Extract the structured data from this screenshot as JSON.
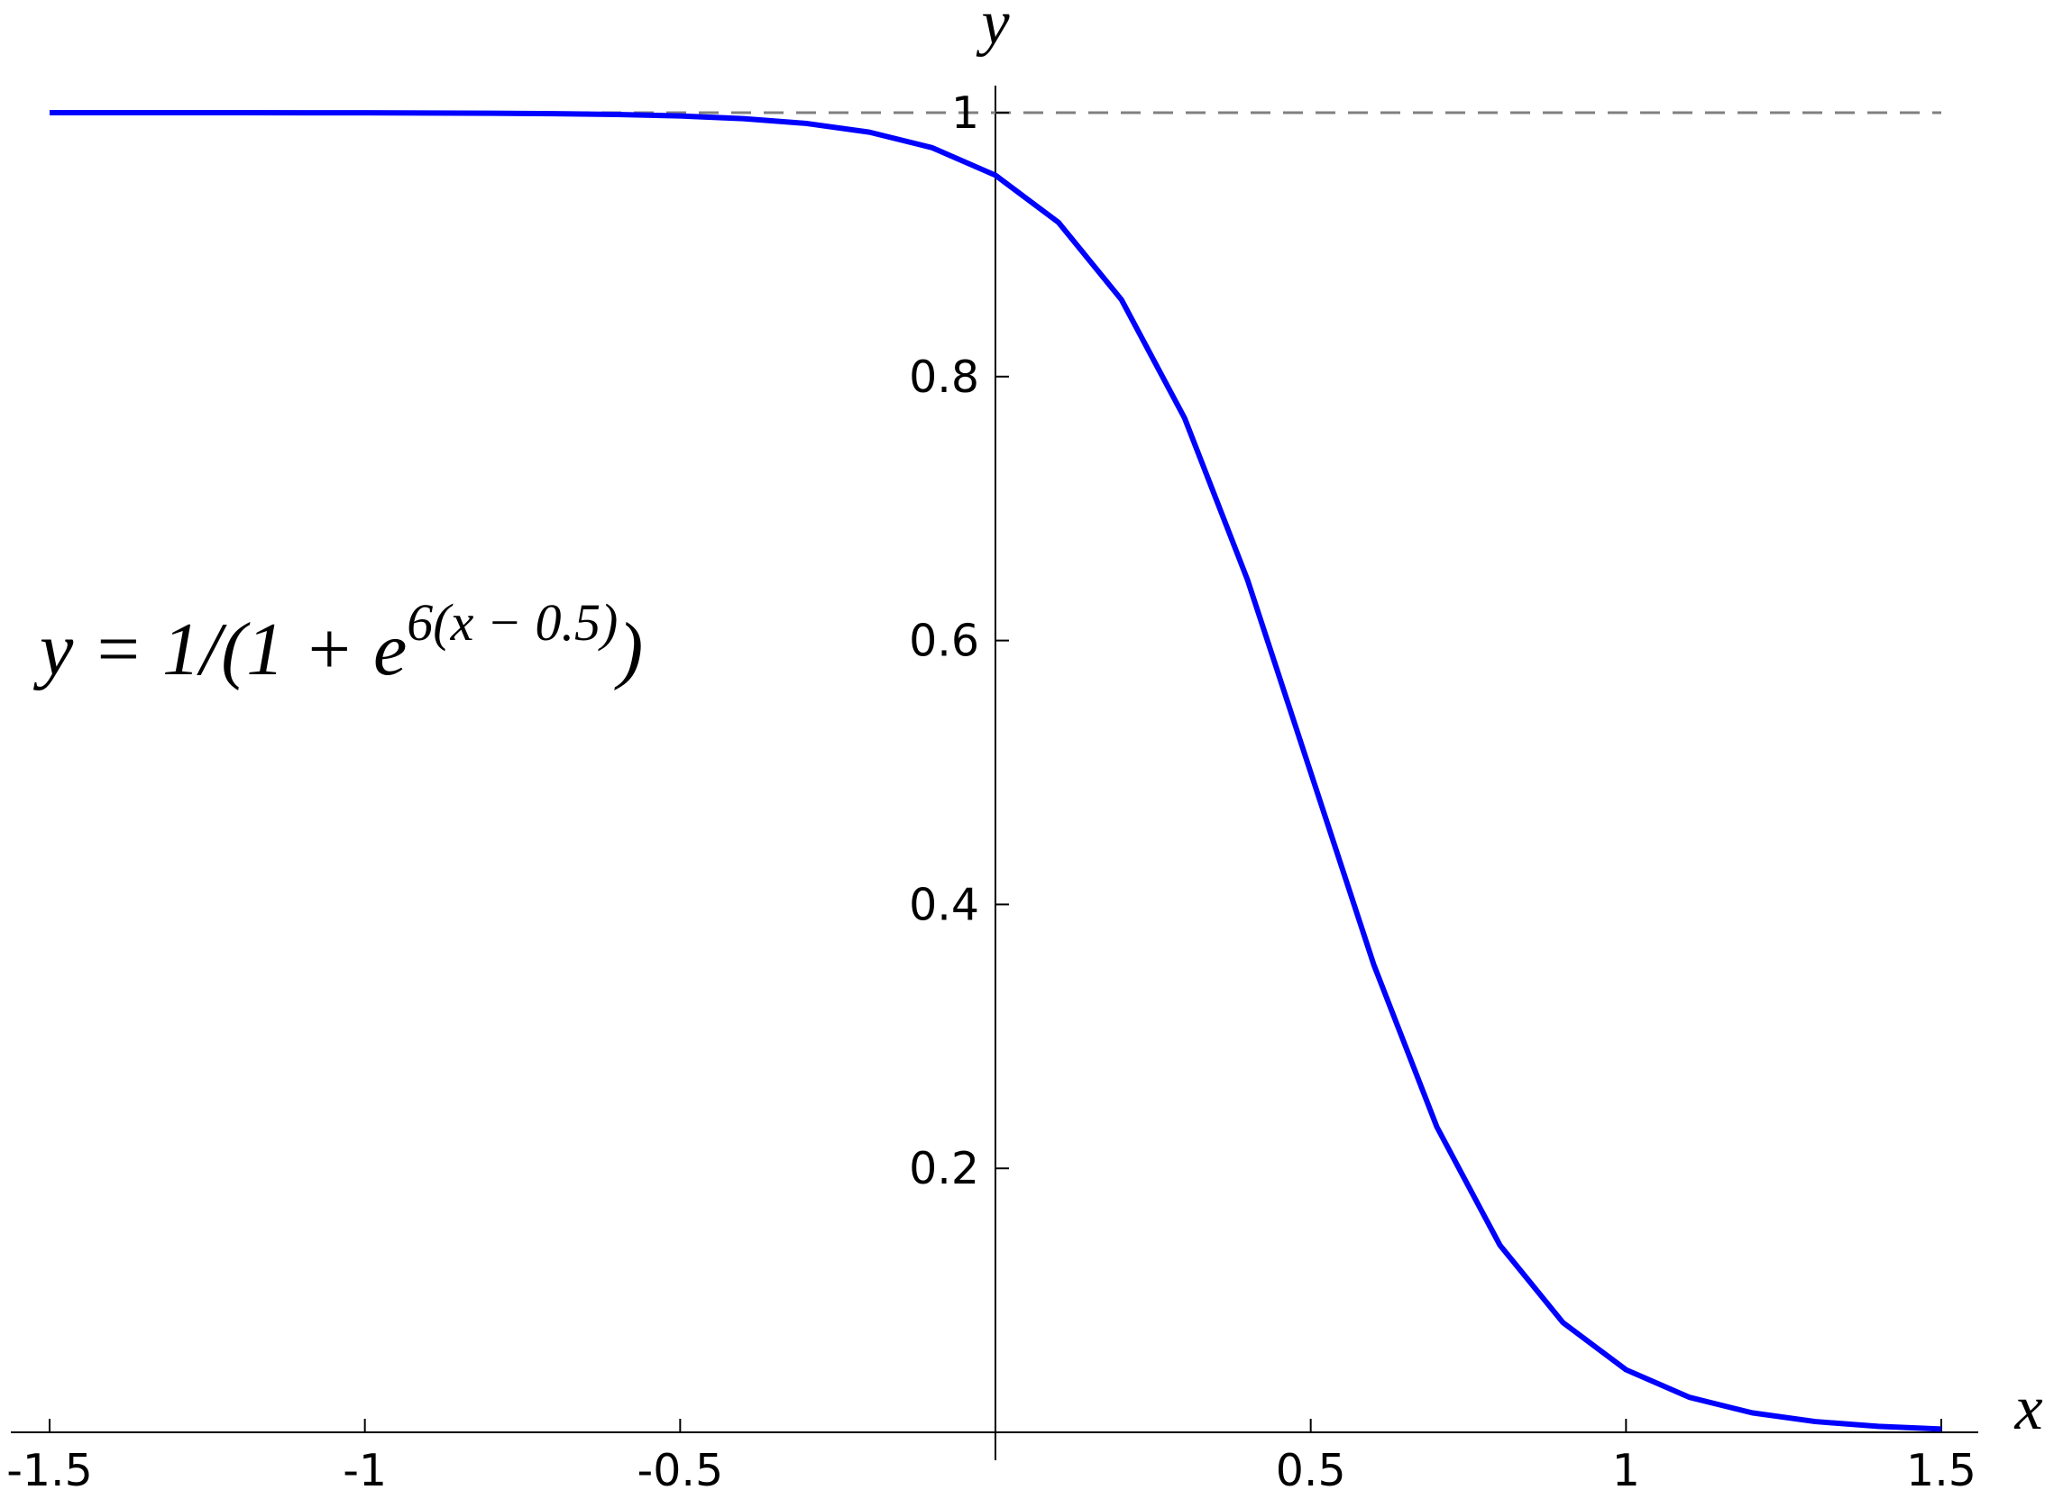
{
  "chart_data": {
    "type": "line",
    "x_label": "x",
    "y_label": "y",
    "annotation": {
      "base": "y = 1/(1 + e",
      "exponent": "6(x − 0.5)",
      "close": ")"
    },
    "x": [
      -1.5,
      -1.4,
      -1.3,
      -1.2,
      -1.1,
      -1.0,
      -0.9,
      -0.8,
      -0.7,
      -0.6,
      -0.5,
      -0.4,
      -0.3,
      -0.2,
      -0.1,
      0,
      0.1,
      0.2,
      0.3,
      0.4,
      0.5,
      0.6,
      0.7,
      0.8,
      0.9,
      1.0,
      1.1,
      1.2,
      1.3,
      1.4,
      1.5
    ],
    "series": [
      {
        "color": "#0000ff",
        "values": [
          0.99999,
          0.99999,
          0.99998,
          0.99996,
          0.99993,
          0.99988,
          0.99978,
          0.99959,
          0.99925,
          0.99864,
          0.99753,
          0.9955,
          0.99184,
          0.98523,
          0.9734,
          0.95257,
          0.91683,
          0.85815,
          0.76852,
          0.64566,
          0.5,
          0.35434,
          0.23148,
          0.14185,
          0.08317,
          0.04743,
          0.0266,
          0.01477,
          0.00816,
          0.0045,
          0.00247
        ]
      }
    ],
    "xlim": [
      -1.5,
      1.5
    ],
    "ylim": [
      0,
      1
    ],
    "xticks": [
      -1.5,
      -1,
      -0.5,
      0.5,
      1,
      1.5
    ],
    "yticks": [
      0.2,
      0.4,
      0.6,
      0.8,
      1
    ],
    "hline": 1
  }
}
